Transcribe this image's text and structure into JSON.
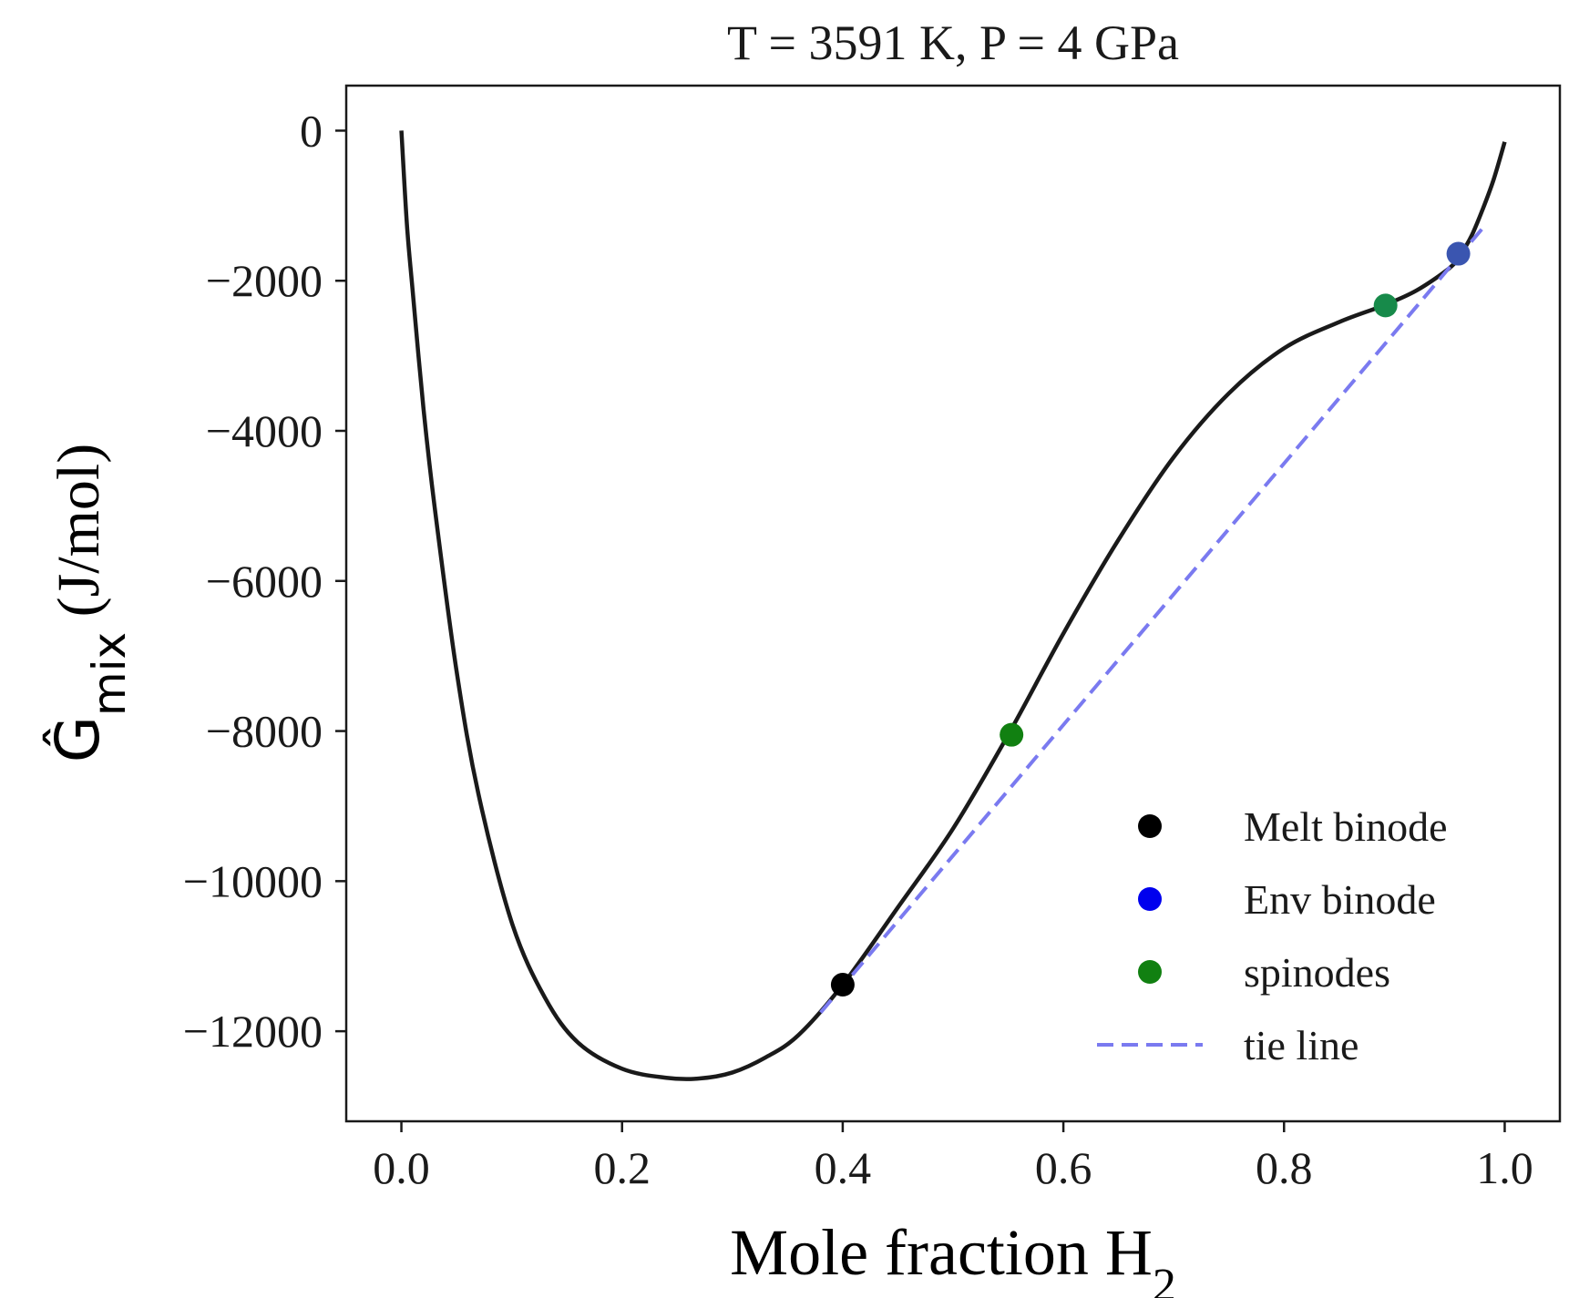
{
  "chart_data": {
    "type": "line",
    "title": "T = 3591 K, P = 4 GPa",
    "xlabel": {
      "text": "Mole fraction H",
      "subscript": "2"
    },
    "ylabel": {
      "symbol": "Ĝ",
      "subscript": "mix",
      "units": " (J/mol)"
    },
    "xlim": [
      -0.05,
      1.05
    ],
    "ylim": [
      -13200,
      600
    ],
    "xticks": [
      0.0,
      0.2,
      0.4,
      0.6,
      0.8,
      1.0
    ],
    "xtick_labels": [
      "0.0",
      "0.2",
      "0.4",
      "0.6",
      "0.8",
      "1.0"
    ],
    "yticks": [
      0,
      -2000,
      -4000,
      -6000,
      -8000,
      -10000,
      -12000
    ],
    "ytick_labels": [
      "0",
      "−2000",
      "−4000",
      "−6000",
      "−8000",
      "−10000",
      "−12000"
    ],
    "series": [
      {
        "name": "G_mix curve",
        "style": "solid",
        "color": "#1a1a1a",
        "x": [
          0.0,
          0.005,
          0.01,
          0.02,
          0.03,
          0.05,
          0.07,
          0.1,
          0.13,
          0.16,
          0.2,
          0.24,
          0.27,
          0.3,
          0.33,
          0.36,
          0.4,
          0.45,
          0.5,
          0.55,
          0.6,
          0.65,
          0.7,
          0.75,
          0.8,
          0.85,
          0.89,
          0.92,
          0.95,
          0.96,
          0.97,
          0.98,
          0.99,
          1.0
        ],
        "y": [
          0,
          -1250,
          -2100,
          -3700,
          -5000,
          -7200,
          -8850,
          -10550,
          -11550,
          -12150,
          -12500,
          -12620,
          -12630,
          -12550,
          -12350,
          -12050,
          -11380,
          -10350,
          -9300,
          -8050,
          -6700,
          -5450,
          -4350,
          -3500,
          -2900,
          -2550,
          -2330,
          -2130,
          -1830,
          -1650,
          -1400,
          -1050,
          -650,
          -150
        ]
      },
      {
        "name": "tie line",
        "style": "dashed",
        "color": "#7a7af0",
        "x": [
          0.38,
          0.98
        ],
        "y": [
          -11750,
          -1300
        ]
      }
    ],
    "points": [
      {
        "label": "Melt binode",
        "x": 0.4,
        "y": -11380,
        "color": "#000000"
      },
      {
        "label": "spinodes",
        "x": 0.553,
        "y": -8050,
        "color": "#118011"
      },
      {
        "label": "spinodes",
        "x": 0.892,
        "y": -2330,
        "color": "#178a4a"
      },
      {
        "label": "Env binode",
        "x": 0.958,
        "y": -1640,
        "color": "#3a55b0"
      }
    ],
    "legend": {
      "position": "lower-right",
      "entries": [
        {
          "label": "Melt binode",
          "marker": "dot",
          "color": "#000000"
        },
        {
          "label": "Env binode",
          "marker": "dot",
          "color": "#0000ee"
        },
        {
          "label": "spinodes",
          "marker": "dot",
          "color": "#118011"
        },
        {
          "label": "tie line",
          "marker": "dash",
          "color": "#7a7af0"
        }
      ]
    }
  }
}
